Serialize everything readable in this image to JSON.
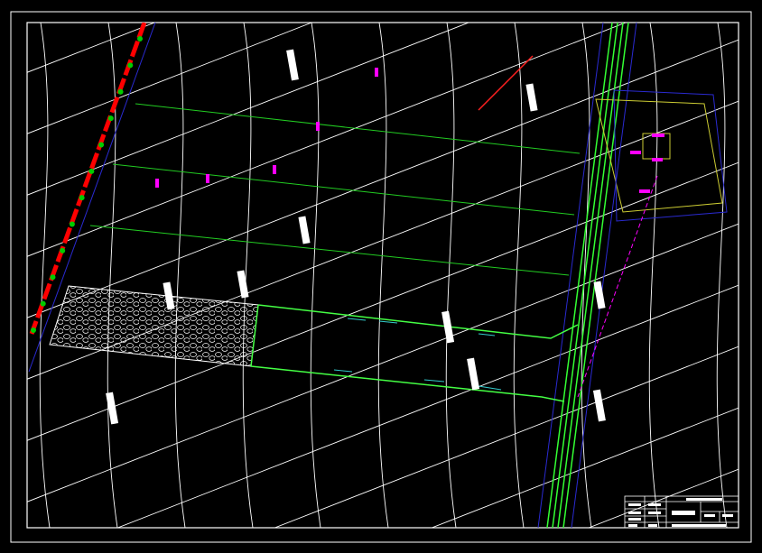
{
  "drawing": {
    "background": "#000000",
    "colors": {
      "frame": "#ffffff",
      "grid": "#ffffff",
      "road": "#33ff33",
      "road_edge": "#2020cc",
      "boundary": "#ff0000",
      "boundary_markers": "#00cc00",
      "section_lines": "#22cc22",
      "channel": "#44ff44",
      "annotation": "#ff00ff",
      "building": "#cccc33",
      "flow_arrows": "#33cccc"
    },
    "icons": [
      "rubble-fill-pattern",
      "flow-arrow",
      "survey-label"
    ]
  },
  "title_block": {
    "title": ""
  }
}
